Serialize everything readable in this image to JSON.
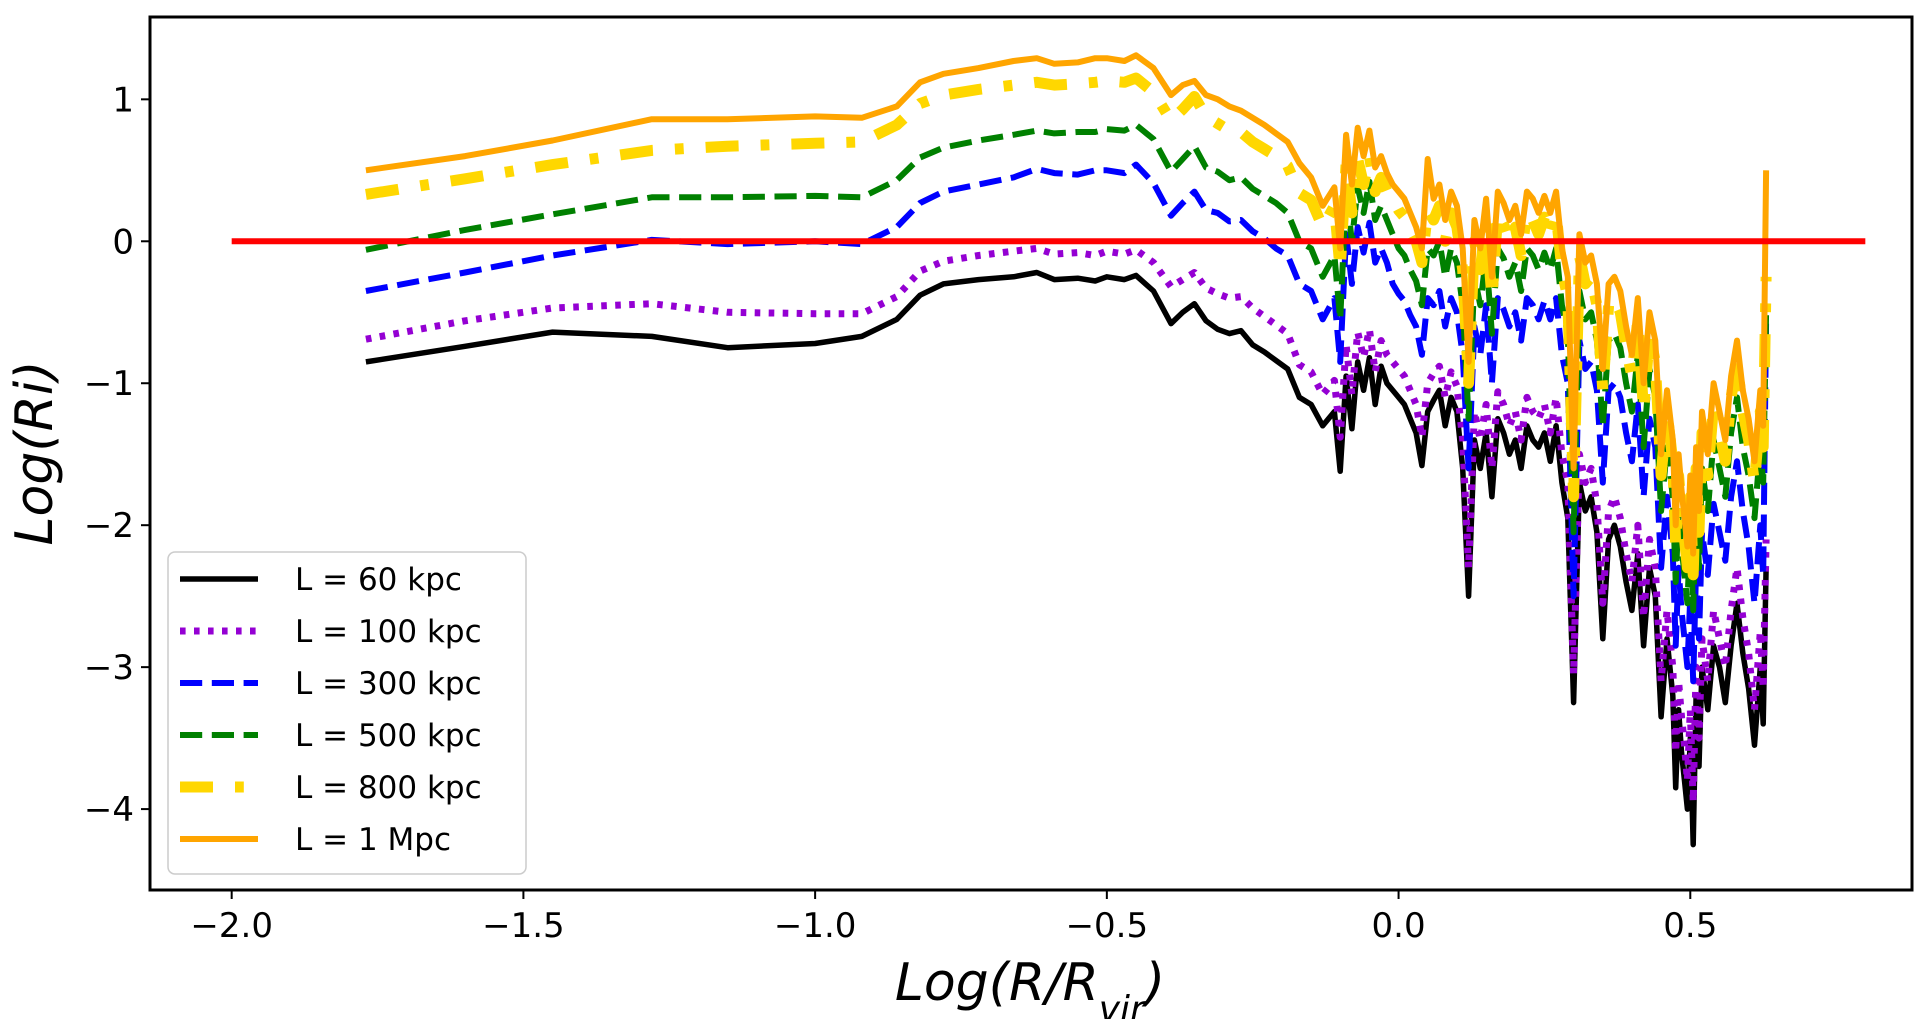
{
  "chart_data": {
    "type": "line",
    "title": "",
    "xlabel": "Log(R/R_vir)",
    "xlabel_main": "Log(R/R",
    "xlabel_sub": "vir",
    "xlabel_close": ")",
    "ylabel": "Log(Ri)",
    "xlim": [
      -2.14,
      0.88
    ],
    "ylim": [
      -4.57,
      1.58
    ],
    "xticks": [
      -2.0,
      -1.5,
      -1.0,
      -0.5,
      0.0,
      0.5
    ],
    "xtick_labels": [
      "−2.0",
      "−1.5",
      "−1.0",
      "−0.5",
      "0.0",
      "0.5"
    ],
    "yticks": [
      1,
      0,
      -1,
      -2,
      -3,
      -4
    ],
    "ytick_labels": [
      "1",
      "0",
      "−1",
      "−2",
      "−3",
      "−4"
    ],
    "grid": false,
    "legend_position": "lower-left",
    "reference_line": {
      "name": "Ri = 1",
      "y": 0,
      "x": [
        -2.0,
        0.8
      ],
      "color": "#ff0000"
    },
    "x": [
      -1.77,
      -1.6,
      -1.45,
      -1.28,
      -1.15,
      -1.0,
      -0.92,
      -0.86,
      -0.82,
      -0.78,
      -0.72,
      -0.66,
      -0.62,
      -0.59,
      -0.55,
      -0.52,
      -0.5,
      -0.47,
      -0.45,
      -0.42,
      -0.39,
      -0.37,
      -0.35,
      -0.33,
      -0.31,
      -0.29,
      -0.27,
      -0.25,
      -0.23,
      -0.21,
      -0.19,
      -0.17,
      -0.15,
      -0.13,
      -0.11,
      -0.1,
      -0.09,
      -0.08,
      -0.07,
      -0.06,
      -0.05,
      -0.04,
      -0.03,
      -0.02,
      -0.01,
      0.0,
      0.01,
      0.02,
      0.03,
      0.04,
      0.05,
      0.06,
      0.07,
      0.08,
      0.09,
      0.1,
      0.11,
      0.12,
      0.13,
      0.14,
      0.15,
      0.16,
      0.17,
      0.18,
      0.19,
      0.2,
      0.21,
      0.22,
      0.23,
      0.24,
      0.25,
      0.26,
      0.27,
      0.28,
      0.29,
      0.3,
      0.31,
      0.32,
      0.33,
      0.34,
      0.35,
      0.36,
      0.37,
      0.38,
      0.39,
      0.4,
      0.41,
      0.42,
      0.43,
      0.44,
      0.45,
      0.46,
      0.47,
      0.475,
      0.48,
      0.485,
      0.49,
      0.495,
      0.5,
      0.505,
      0.51,
      0.515,
      0.52,
      0.53,
      0.54,
      0.55,
      0.56,
      0.57,
      0.58,
      0.59,
      0.6,
      0.61,
      0.62,
      0.625,
      0.63
    ],
    "series": [
      {
        "name": "L = 60 kpc",
        "color": "#000000",
        "dash": "solid",
        "width": 5.5,
        "values": [
          -0.85,
          -0.74,
          -0.64,
          -0.67,
          -0.75,
          -0.72,
          -0.67,
          -0.55,
          -0.38,
          -0.3,
          -0.27,
          -0.25,
          -0.22,
          -0.27,
          -0.26,
          -0.28,
          -0.25,
          -0.27,
          -0.24,
          -0.35,
          -0.58,
          -0.5,
          -0.44,
          -0.56,
          -0.62,
          -0.65,
          -0.63,
          -0.73,
          -0.78,
          -0.84,
          -0.9,
          -1.1,
          -1.15,
          -1.3,
          -1.2,
          -1.62,
          -0.95,
          -1.32,
          -0.85,
          -1.05,
          -0.82,
          -1.15,
          -0.88,
          -1.0,
          -1.05,
          -1.1,
          -1.15,
          -1.25,
          -1.35,
          -1.58,
          -1.2,
          -1.12,
          -1.05,
          -1.3,
          -1.1,
          -1.2,
          -1.6,
          -2.5,
          -1.4,
          -1.6,
          -1.35,
          -1.8,
          -1.25,
          -1.35,
          -1.5,
          -1.4,
          -1.6,
          -1.3,
          -1.4,
          -1.45,
          -1.35,
          -1.55,
          -1.3,
          -1.7,
          -1.95,
          -3.25,
          -1.7,
          -1.9,
          -1.8,
          -2.05,
          -2.8,
          -2.1,
          -2.0,
          -2.15,
          -2.4,
          -2.6,
          -2.2,
          -2.85,
          -2.3,
          -2.5,
          -3.35,
          -2.8,
          -3.2,
          -3.85,
          -3.3,
          -3.6,
          -3.8,
          -4.0,
          -3.5,
          -4.25,
          -3.2,
          -3.7,
          -3.0,
          -3.3,
          -2.85,
          -3.0,
          -3.25,
          -2.85,
          -2.55,
          -2.9,
          -3.15,
          -3.55,
          -3.0,
          -3.4,
          -2.3
        ]
      },
      {
        "name": "L = 100 kpc",
        "color": "#9400d3",
        "dash": "dotted",
        "width": 7,
        "values": [
          -0.69,
          -0.56,
          -0.47,
          -0.44,
          -0.5,
          -0.51,
          -0.51,
          -0.39,
          -0.21,
          -0.14,
          -0.1,
          -0.07,
          -0.05,
          -0.09,
          -0.08,
          -0.1,
          -0.07,
          -0.09,
          -0.06,
          -0.15,
          -0.32,
          -0.27,
          -0.22,
          -0.33,
          -0.37,
          -0.4,
          -0.39,
          -0.47,
          -0.53,
          -0.59,
          -0.65,
          -0.87,
          -0.92,
          -1.08,
          -0.98,
          -1.38,
          -0.73,
          -1.08,
          -0.64,
          -0.82,
          -0.62,
          -0.92,
          -0.7,
          -0.8,
          -0.85,
          -0.9,
          -0.95,
          -1.05,
          -1.15,
          -1.38,
          -1.0,
          -0.93,
          -0.88,
          -1.1,
          -0.92,
          -1.02,
          -1.4,
          -2.3,
          -1.2,
          -1.4,
          -1.15,
          -1.6,
          -1.06,
          -1.15,
          -1.3,
          -1.2,
          -1.4,
          -1.1,
          -1.2,
          -1.25,
          -1.15,
          -1.35,
          -1.1,
          -1.5,
          -1.7,
          -3.05,
          -1.5,
          -1.7,
          -1.6,
          -1.85,
          -2.55,
          -1.9,
          -1.8,
          -1.95,
          -2.2,
          -2.4,
          -2.0,
          -2.65,
          -2.1,
          -2.3,
          -3.1,
          -2.6,
          -3.0,
          -3.6,
          -3.1,
          -3.35,
          -3.55,
          -3.8,
          -3.3,
          -3.95,
          -3.0,
          -3.5,
          -2.8,
          -3.1,
          -2.6,
          -2.8,
          -3.0,
          -2.6,
          -2.3,
          -2.65,
          -2.9,
          -3.3,
          -2.75,
          -3.15,
          -2.1
        ]
      },
      {
        "name": "L = 300 kpc",
        "color": "#0000ff",
        "dash": "dashed",
        "width": 6,
        "values": [
          -0.35,
          -0.22,
          -0.1,
          0.01,
          -0.02,
          0.0,
          -0.02,
          0.1,
          0.27,
          0.35,
          0.4,
          0.45,
          0.51,
          0.48,
          0.47,
          0.5,
          0.5,
          0.48,
          0.54,
          0.41,
          0.18,
          0.27,
          0.35,
          0.22,
          0.2,
          0.14,
          0.15,
          0.07,
          0.02,
          -0.05,
          -0.1,
          -0.3,
          -0.35,
          -0.55,
          -0.4,
          -0.85,
          0.05,
          -0.3,
          0.1,
          -0.08,
          0.13,
          -0.15,
          -0.05,
          -0.15,
          -0.3,
          -0.37,
          -0.42,
          -0.52,
          -0.6,
          -0.8,
          -0.4,
          -0.45,
          -0.35,
          -0.6,
          -0.4,
          -0.5,
          -0.8,
          -1.6,
          -0.6,
          -0.8,
          -0.45,
          -1.0,
          -0.4,
          -0.48,
          -0.6,
          -0.5,
          -0.7,
          -0.4,
          -0.45,
          -0.55,
          -0.42,
          -0.55,
          -0.4,
          -0.8,
          -1.0,
          -2.5,
          -0.7,
          -0.9,
          -0.85,
          -1.05,
          -1.7,
          -1.05,
          -1.0,
          -1.1,
          -1.35,
          -1.55,
          -1.15,
          -1.8,
          -1.25,
          -1.45,
          -2.3,
          -1.8,
          -2.2,
          -2.85,
          -2.3,
          -2.6,
          -2.8,
          -3.0,
          -2.5,
          -3.1,
          -2.3,
          -2.8,
          -2.05,
          -2.35,
          -1.85,
          -2.05,
          -2.25,
          -1.8,
          -1.55,
          -1.9,
          -2.15,
          -2.55,
          -2.0,
          -2.35,
          -0.55
        ]
      },
      {
        "name": "L = 500 kpc",
        "color": "#008000",
        "dash": "dashed",
        "width": 6,
        "values": [
          -0.06,
          0.08,
          0.19,
          0.31,
          0.31,
          0.32,
          0.31,
          0.43,
          0.59,
          0.66,
          0.71,
          0.75,
          0.78,
          0.76,
          0.77,
          0.77,
          0.79,
          0.78,
          0.82,
          0.72,
          0.49,
          0.58,
          0.67,
          0.52,
          0.49,
          0.43,
          0.45,
          0.37,
          0.32,
          0.27,
          0.2,
          0.0,
          -0.05,
          -0.25,
          -0.1,
          -0.55,
          0.35,
          0.0,
          0.38,
          0.2,
          0.42,
          0.15,
          0.25,
          0.15,
          0.05,
          -0.05,
          -0.1,
          -0.2,
          -0.28,
          -0.45,
          -0.05,
          -0.1,
          0.0,
          -0.25,
          -0.05,
          -0.15,
          -0.45,
          -1.25,
          -0.25,
          -0.45,
          -0.1,
          -0.65,
          -0.05,
          -0.12,
          -0.25,
          -0.15,
          -0.35,
          -0.05,
          -0.1,
          -0.2,
          -0.08,
          -0.2,
          -0.05,
          -0.45,
          -0.65,
          -2.05,
          -0.35,
          -0.55,
          -0.5,
          -0.7,
          -1.3,
          -0.7,
          -0.65,
          -0.75,
          -1.0,
          -1.2,
          -0.8,
          -1.45,
          -0.9,
          -1.1,
          -1.9,
          -1.45,
          -1.8,
          -2.4,
          -1.9,
          -2.15,
          -2.35,
          -2.55,
          -2.05,
          -2.6,
          -1.85,
          -2.3,
          -1.6,
          -1.9,
          -1.4,
          -1.6,
          -1.8,
          -1.35,
          -1.1,
          -1.45,
          -1.65,
          -1.95,
          -1.45,
          -1.7,
          -0.5
        ]
      },
      {
        "name": "L = 800 kpc",
        "color": "#ffd700",
        "dash": "dashdot",
        "width": 11,
        "values": [
          0.33,
          0.44,
          0.54,
          0.64,
          0.67,
          0.69,
          0.7,
          0.82,
          0.97,
          1.03,
          1.07,
          1.1,
          1.12,
          1.1,
          1.11,
          1.12,
          1.13,
          1.12,
          1.15,
          1.05,
          0.85,
          0.93,
          1.02,
          0.88,
          0.83,
          0.78,
          0.77,
          0.7,
          0.65,
          0.6,
          0.53,
          0.34,
          0.29,
          0.1,
          0.25,
          -0.2,
          0.55,
          0.2,
          0.58,
          0.4,
          0.6,
          0.35,
          0.45,
          0.35,
          0.3,
          0.22,
          0.17,
          0.08,
          0.0,
          -0.15,
          0.22,
          0.15,
          0.25,
          0.0,
          0.2,
          0.1,
          -0.2,
          -1.0,
          0.0,
          -0.2,
          0.15,
          -0.4,
          0.2,
          0.12,
          0.0,
          0.1,
          -0.1,
          0.2,
          0.15,
          0.05,
          0.17,
          0.05,
          0.2,
          -0.2,
          -0.4,
          -1.8,
          -0.1,
          -0.3,
          -0.25,
          -0.45,
          -1.05,
          -0.45,
          -0.4,
          -0.5,
          -0.75,
          -0.95,
          -0.55,
          -1.2,
          -0.65,
          -0.85,
          -1.65,
          -1.2,
          -1.55,
          -2.15,
          -1.65,
          -1.9,
          -2.1,
          -2.3,
          -1.8,
          -2.35,
          -1.6,
          -2.05,
          -1.35,
          -1.65,
          -1.15,
          -1.35,
          -1.55,
          -1.1,
          -0.85,
          -1.2,
          -1.4,
          -1.7,
          -1.2,
          -1.45,
          -0.25
        ]
      },
      {
        "name": "L = 1 Mpc",
        "color": "#ffa500",
        "dash": "solid",
        "width": 6,
        "values": [
          0.5,
          0.6,
          0.71,
          0.86,
          0.86,
          0.88,
          0.87,
          0.95,
          1.12,
          1.18,
          1.22,
          1.27,
          1.29,
          1.25,
          1.26,
          1.29,
          1.29,
          1.27,
          1.31,
          1.22,
          1.03,
          1.1,
          1.13,
          1.03,
          1.0,
          0.95,
          0.92,
          0.87,
          0.82,
          0.76,
          0.7,
          0.55,
          0.45,
          0.25,
          0.38,
          -0.05,
          0.75,
          0.4,
          0.8,
          0.6,
          0.78,
          0.52,
          0.6,
          0.48,
          0.4,
          0.35,
          0.3,
          0.2,
          0.1,
          -0.05,
          0.58,
          0.3,
          0.4,
          0.15,
          0.35,
          0.25,
          -0.05,
          -0.85,
          0.15,
          -0.05,
          0.3,
          -0.25,
          0.35,
          0.27,
          0.15,
          0.25,
          0.05,
          0.35,
          0.3,
          0.2,
          0.32,
          0.2,
          0.35,
          -0.05,
          -0.25,
          -1.6,
          0.05,
          -0.15,
          -0.1,
          -0.3,
          -0.9,
          -0.3,
          -0.25,
          -0.35,
          -0.6,
          -0.8,
          -0.4,
          -1.0,
          -0.5,
          -0.7,
          -1.5,
          -1.05,
          -1.4,
          -2.0,
          -1.5,
          -1.75,
          -1.95,
          -2.15,
          -1.65,
          -2.2,
          -1.45,
          -1.9,
          -1.2,
          -1.5,
          -1.0,
          -1.2,
          -1.4,
          -0.95,
          -0.7,
          -1.05,
          -1.25,
          -1.55,
          -1.05,
          -1.3,
          0.5
        ]
      }
    ]
  }
}
